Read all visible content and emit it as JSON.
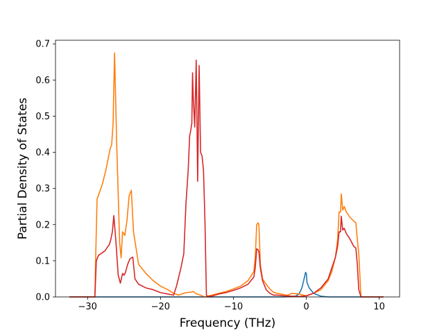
{
  "chart_data": {
    "type": "line",
    "title": "",
    "xlabel": "Frequency (THz)",
    "ylabel": "Partial Density of States",
    "xlim": [
      -34.4,
      12.8
    ],
    "ylim": [
      0.0,
      0.71
    ],
    "xticks": [
      -30,
      -20,
      -10,
      0,
      10
    ],
    "yticks": [
      0.0,
      0.1,
      0.2,
      0.3,
      0.4,
      0.5,
      0.6,
      0.7
    ],
    "xtick_labels": [
      "−30",
      "−20",
      "−10",
      "0",
      "10"
    ],
    "ytick_labels": [
      "0.0",
      "0.1",
      "0.2",
      "0.3",
      "0.4",
      "0.5",
      "0.6",
      "0.7"
    ],
    "grid": false,
    "legend": "none",
    "series": [
      {
        "color": "#1f77b4",
        "x": [
          -32.5,
          -3.0,
          -1.5,
          -1.0,
          -0.6,
          -0.3,
          -0.1,
          0.0,
          0.1,
          0.4,
          1.0,
          2.0,
          3.0,
          10.6
        ],
        "y": [
          0.0,
          0.0,
          0.002,
          0.008,
          0.025,
          0.05,
          0.068,
          0.065,
          0.04,
          0.025,
          0.01,
          0.002,
          0.0,
          0.0
        ]
      },
      {
        "color": "#ff7f0e",
        "x": [
          -32.5,
          -29.0,
          -28.9,
          -28.7,
          -28.0,
          -27.5,
          -27.2,
          -26.9,
          -26.7,
          -26.6,
          -26.5,
          -26.3,
          -26.0,
          -25.6,
          -25.4,
          -25.2,
          -24.9,
          -24.6,
          -24.3,
          -24.1,
          -24.0,
          -23.7,
          -23.0,
          -22.0,
          -21.0,
          -20.0,
          -19.0,
          -18.2,
          -17.5,
          -16.5,
          -15.8,
          -15.5,
          -15.2,
          -15.0,
          -14.5,
          -14.0,
          -13.6,
          -13.4,
          -13.0,
          -12.0,
          -11.0,
          -10.0,
          -9.0,
          -8.0,
          -7.2,
          -7.0,
          -6.8,
          -6.6,
          -6.5,
          -6.3,
          -6.0,
          -5.5,
          -5.0,
          -4.5,
          -4.0,
          -3.5,
          -3.0,
          -2.5,
          -2.0,
          -1.0,
          0.0,
          1.0,
          2.0,
          3.0,
          3.5,
          4.0,
          4.3,
          4.5,
          4.7,
          4.8,
          5.0,
          5.2,
          5.5,
          6.0,
          6.5,
          6.8,
          7.0,
          7.2,
          7.5,
          10.6
        ],
        "y": [
          0.0,
          0.0,
          0.1,
          0.27,
          0.31,
          0.35,
          0.38,
          0.41,
          0.42,
          0.45,
          0.48,
          0.675,
          0.42,
          0.15,
          0.108,
          0.18,
          0.17,
          0.21,
          0.28,
          0.29,
          0.295,
          0.18,
          0.09,
          0.065,
          0.045,
          0.03,
          0.02,
          0.01,
          0.005,
          0.012,
          0.013,
          0.015,
          0.01,
          0.008,
          0.005,
          0.0,
          0.001,
          0.003,
          0.005,
          0.01,
          0.015,
          0.022,
          0.03,
          0.045,
          0.07,
          0.11,
          0.2,
          0.205,
          0.2,
          0.09,
          0.05,
          0.035,
          0.022,
          0.013,
          0.01,
          0.008,
          0.006,
          0.005,
          0.01,
          0.008,
          0.003,
          0.01,
          0.02,
          0.045,
          0.07,
          0.11,
          0.16,
          0.235,
          0.235,
          0.285,
          0.24,
          0.25,
          0.235,
          0.22,
          0.21,
          0.205,
          0.16,
          0.12,
          0.0,
          0.0
        ]
      },
      {
        "color": "#d62728",
        "x": [
          -32.5,
          -29.0,
          -28.8,
          -28.5,
          -28.0,
          -27.6,
          -27.2,
          -27.0,
          -26.8,
          -26.6,
          -26.4,
          -26.1,
          -25.8,
          -25.5,
          -25.2,
          -25.0,
          -24.8,
          -24.5,
          -24.2,
          -24.0,
          -23.8,
          -23.5,
          -23.0,
          -22.0,
          -21.0,
          -20.0,
          -19.0,
          -18.2,
          -17.8,
          -17.2,
          -16.8,
          -16.5,
          -16.2,
          -16.0,
          -15.9,
          -15.7,
          -15.6,
          -15.5,
          -15.3,
          -15.1,
          -14.9,
          -14.7,
          -14.5,
          -14.3,
          -14.1,
          -13.9,
          -13.7,
          -13.5,
          -13.0,
          -12.0,
          -11.0,
          -10.0,
          -9.0,
          -8.0,
          -7.2,
          -7.0,
          -6.8,
          -6.6,
          -6.5,
          -6.3,
          -6.0,
          -5.5,
          -5.0,
          -4.5,
          -4.0,
          -3.5,
          -3.0,
          -2.0,
          -1.0,
          0.0,
          1.0,
          2.0,
          3.0,
          3.5,
          4.0,
          4.3,
          4.5,
          4.7,
          4.8,
          5.0,
          5.2,
          5.5,
          6.0,
          6.5,
          6.8,
          7.0,
          7.2,
          7.5,
          10.6
        ],
        "y": [
          0.0,
          0.0,
          0.1,
          0.115,
          0.122,
          0.128,
          0.14,
          0.145,
          0.16,
          0.18,
          0.225,
          0.15,
          0.06,
          0.038,
          0.065,
          0.06,
          0.068,
          0.09,
          0.105,
          0.108,
          0.11,
          0.05,
          0.035,
          0.025,
          0.02,
          0.012,
          0.008,
          0.005,
          0.03,
          0.08,
          0.12,
          0.26,
          0.35,
          0.445,
          0.455,
          0.48,
          0.62,
          0.55,
          0.47,
          0.655,
          0.32,
          0.64,
          0.4,
          0.39,
          0.35,
          0.21,
          0.005,
          0.001,
          0.002,
          0.008,
          0.012,
          0.018,
          0.025,
          0.035,
          0.055,
          0.08,
          0.133,
          0.13,
          0.125,
          0.08,
          0.045,
          0.02,
          0.01,
          0.005,
          0.005,
          0.004,
          0.003,
          0.002,
          0.001,
          0.003,
          0.01,
          0.025,
          0.05,
          0.08,
          0.11,
          0.14,
          0.18,
          0.18,
          0.223,
          0.185,
          0.19,
          0.175,
          0.16,
          0.14,
          0.135,
          0.09,
          0.02,
          0.0,
          0.0
        ]
      }
    ]
  }
}
